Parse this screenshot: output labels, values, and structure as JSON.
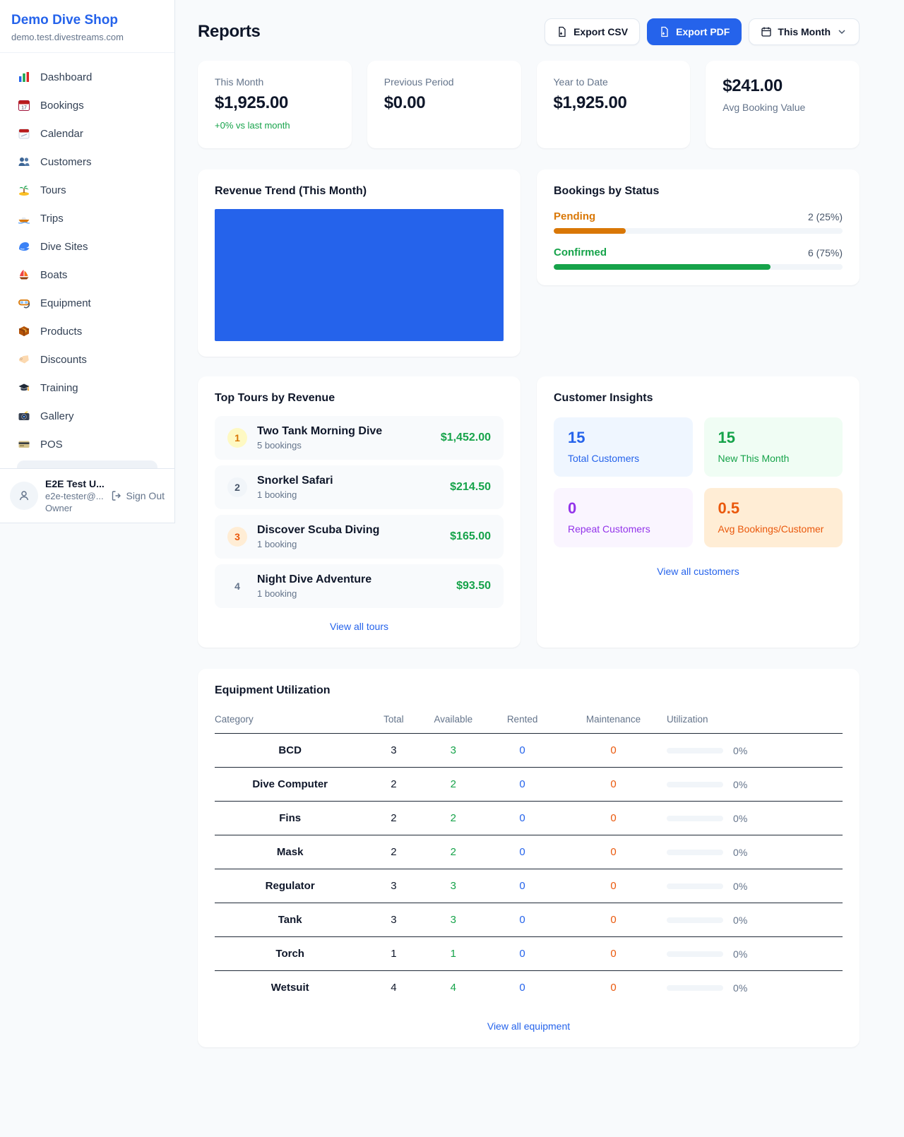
{
  "brand": {
    "name": "Demo Dive Shop",
    "domain": "demo.test.divestreams.com"
  },
  "sidebar": {
    "items": [
      {
        "icon": "bar-chart-icon",
        "label": "Dashboard"
      },
      {
        "icon": "calendar-date-icon",
        "label": "Bookings"
      },
      {
        "icon": "tear-calendar-icon",
        "label": "Calendar"
      },
      {
        "icon": "people-icon",
        "label": "Customers"
      },
      {
        "icon": "island-icon",
        "label": "Tours"
      },
      {
        "icon": "speedboat-icon",
        "label": "Trips"
      },
      {
        "icon": "wave-icon",
        "label": "Dive Sites"
      },
      {
        "icon": "sailboat-icon",
        "label": "Boats"
      },
      {
        "icon": "dive-mask-icon",
        "label": "Equipment"
      },
      {
        "icon": "package-icon",
        "label": "Products"
      },
      {
        "icon": "tag-icon",
        "label": "Discounts"
      },
      {
        "icon": "grad-cap-icon",
        "label": "Training"
      },
      {
        "icon": "camera-icon",
        "label": "Gallery"
      },
      {
        "icon": "credit-card-icon",
        "label": "POS"
      }
    ],
    "user": {
      "name": "E2E Test U...",
      "email": "e2e-tester@...",
      "role": "Owner",
      "sign_out": "Sign Out"
    }
  },
  "header": {
    "title": "Reports",
    "export_csv": "Export CSV",
    "export_pdf": "Export PDF",
    "period": "This Month"
  },
  "stats": [
    {
      "label": "This Month",
      "value": "$1,925.00",
      "delta": "+0% vs last month"
    },
    {
      "label": "Previous Period",
      "value": "$0.00"
    },
    {
      "label": "Year to Date",
      "value": "$1,925.00"
    },
    {
      "label": "Avg Booking Value",
      "value": "$241.00"
    }
  ],
  "revenue_trend": {
    "title": "Revenue Trend (This Month)",
    "bar_color": "#2563eb"
  },
  "bookings_status": {
    "title": "Bookings by Status",
    "items": [
      {
        "label": "Pending",
        "value": "2 (25%)",
        "percent": "25%",
        "color": "#d97706"
      },
      {
        "label": "Confirmed",
        "value": "6 (75%)",
        "percent": "75%",
        "color": "#16a34a"
      }
    ]
  },
  "top_tours": {
    "title": "Top Tours by Revenue",
    "items": [
      {
        "rank": "1",
        "name": "Two Tank Morning Dive",
        "bookings": "5 bookings",
        "revenue": "$1,452.00"
      },
      {
        "rank": "2",
        "name": "Snorkel Safari",
        "bookings": "1 booking",
        "revenue": "$214.50"
      },
      {
        "rank": "3",
        "name": "Discover Scuba Diving",
        "bookings": "1 booking",
        "revenue": "$165.00"
      },
      {
        "rank": "4",
        "name": "Night Dive Adventure",
        "bookings": "1 booking",
        "revenue": "$93.50"
      }
    ],
    "link": "View all tours"
  },
  "customer_insights": {
    "title": "Customer Insights",
    "tiles": [
      {
        "value": "15",
        "label": "Total Customers",
        "accent": "#2563eb"
      },
      {
        "value": "15",
        "label": "New This Month",
        "accent": "#16a34a"
      },
      {
        "value": "0",
        "label": "Repeat Customers",
        "accent": "#9333ea"
      },
      {
        "value": "0.5",
        "label": "Avg Bookings/Customer",
        "accent": "#ea580c"
      }
    ],
    "link": "View all customers"
  },
  "equipment": {
    "title": "Equipment Utilization",
    "columns": [
      "Category",
      "Total",
      "Available",
      "Rented",
      "Maintenance",
      "Utilization"
    ],
    "rows": [
      {
        "category": "BCD",
        "total": "3",
        "available": "3",
        "rented": "0",
        "maintenance": "0",
        "utilization": "0%",
        "utilization_width": "0%"
      },
      {
        "category": "Dive Computer",
        "total": "2",
        "available": "2",
        "rented": "0",
        "maintenance": "0",
        "utilization": "0%",
        "utilization_width": "0%"
      },
      {
        "category": "Fins",
        "total": "2",
        "available": "2",
        "rented": "0",
        "maintenance": "0",
        "utilization": "0%",
        "utilization_width": "0%"
      },
      {
        "category": "Mask",
        "total": "2",
        "available": "2",
        "rented": "0",
        "maintenance": "0",
        "utilization": "0%",
        "utilization_width": "0%"
      },
      {
        "category": "Regulator",
        "total": "3",
        "available": "3",
        "rented": "0",
        "maintenance": "0",
        "utilization": "0%",
        "utilization_width": "0%"
      },
      {
        "category": "Tank",
        "total": "3",
        "available": "3",
        "rented": "0",
        "maintenance": "0",
        "utilization": "0%",
        "utilization_width": "0%"
      },
      {
        "category": "Torch",
        "total": "1",
        "available": "1",
        "rented": "0",
        "maintenance": "0",
        "utilization": "0%",
        "utilization_width": "0%"
      },
      {
        "category": "Wetsuit",
        "total": "4",
        "available": "4",
        "rented": "0",
        "maintenance": "0",
        "utilization": "0%",
        "utilization_width": "0%"
      }
    ],
    "link": "View all equipment"
  }
}
